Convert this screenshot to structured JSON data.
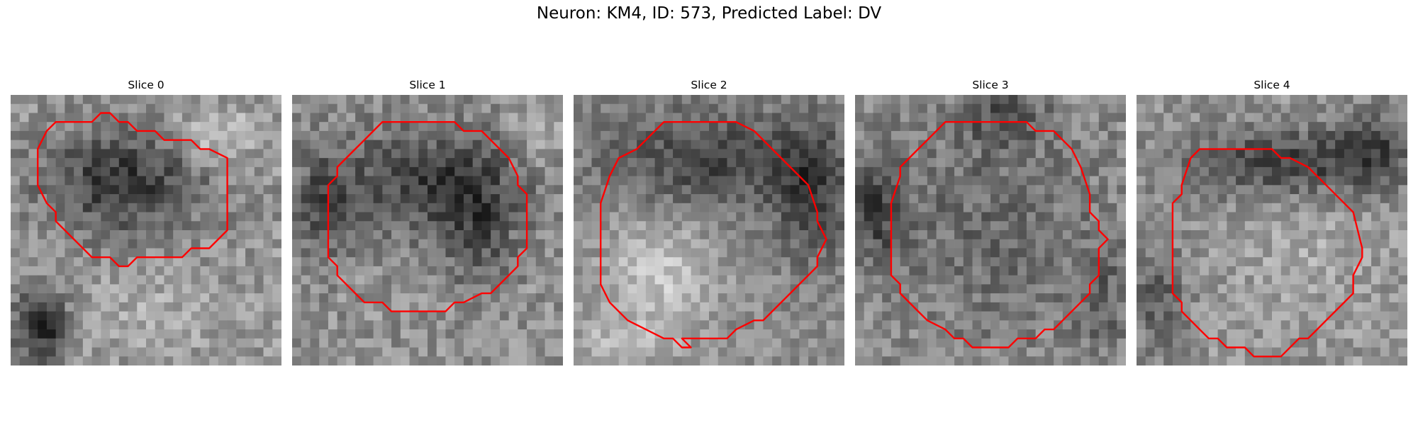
{
  "figure": {
    "title": "Neuron: KM4, ID: 573, Predicted Label: DV"
  },
  "panels": [
    {
      "title": "Slice 0"
    },
    {
      "title": "Slice 1"
    },
    {
      "title": "Slice 2"
    },
    {
      "title": "Slice 3"
    },
    {
      "title": "Slice 4"
    }
  ],
  "colors": {
    "contour": "#ff0000"
  }
}
